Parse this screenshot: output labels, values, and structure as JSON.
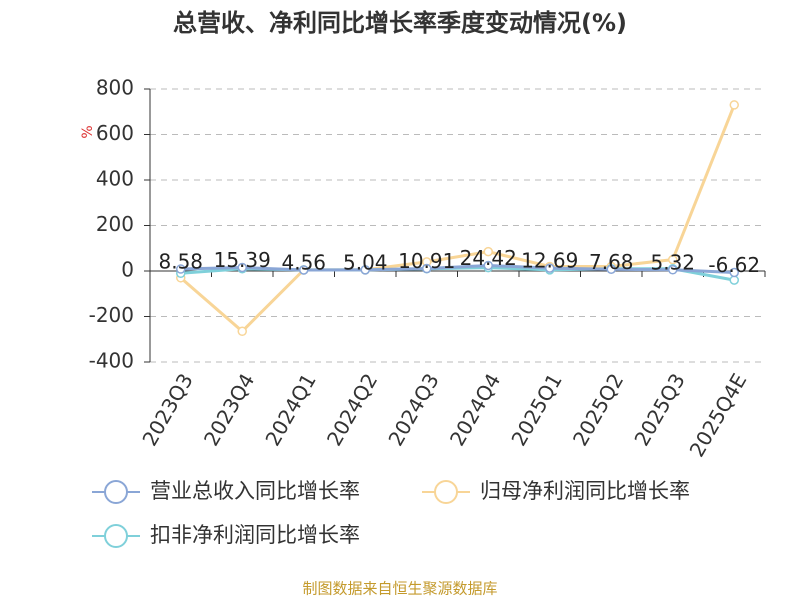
{
  "chart_data": {
    "type": "line",
    "title": "总营收、净利同比增长率季度变动情况(%)",
    "y_label": "%",
    "categories": [
      "2023Q3",
      "2023Q4",
      "2024Q1",
      "2024Q2",
      "2024Q3",
      "2024Q4",
      "2025Q1",
      "2025Q2",
      "2025Q3",
      "2025Q4E"
    ],
    "series": [
      {
        "name": "营业总收入同比增长率",
        "color": "#8aa6d6",
        "values": [
          8.58,
          15.39,
          4.56,
          5.04,
          10.91,
          24.42,
          12.69,
          7.68,
          5.32,
          -6.62
        ],
        "labels": true
      },
      {
        "name": "归母净利润同比增长率",
        "color": "#f8d597",
        "values": [
          -30,
          -265,
          5,
          5,
          40,
          85,
          20,
          20,
          50,
          730
        ]
      },
      {
        "name": "扣非净利润同比增长率",
        "color": "#7fd0da",
        "values": [
          -10,
          10,
          5,
          5,
          10,
          15,
          5,
          10,
          10,
          -40
        ]
      }
    ],
    "ylim": [
      -400,
      800
    ],
    "yticks": [
      -400,
      -200,
      0,
      200,
      400,
      600,
      800
    ],
    "grid": true,
    "source": "制图数据来自恒生聚源数据库"
  }
}
